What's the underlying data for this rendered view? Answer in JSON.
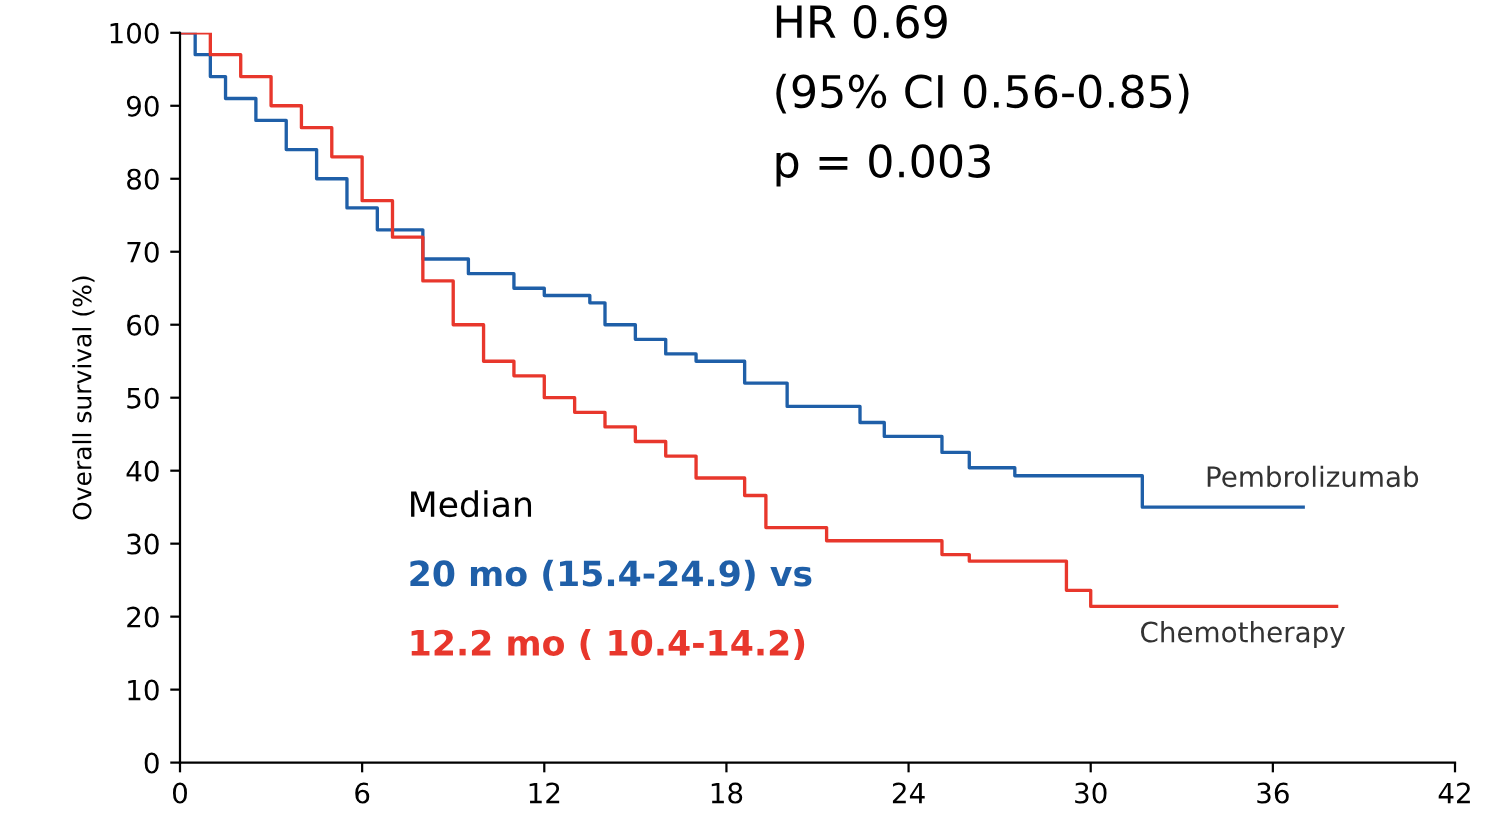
{
  "chart_data": {
    "type": "step",
    "ylabel": "Overall survival (%)",
    "xlim": [
      0,
      42
    ],
    "xticks": [
      0,
      6,
      12,
      18,
      24,
      30,
      36,
      42
    ],
    "ylim": [
      0,
      100
    ],
    "yticks": [
      0,
      10,
      20,
      30,
      40,
      50,
      60,
      70,
      80,
      90,
      100
    ],
    "grid": false,
    "legend": false,
    "marker": "none",
    "line_style": "solid",
    "series": [
      {
        "name": "Pembrolizumab",
        "color": "#1f5fa8",
        "x": [
          0,
          0.5,
          1,
          1.5,
          2.5,
          3.5,
          4.5,
          5.5,
          6.5,
          8,
          9.5,
          11,
          12,
          13.5,
          14,
          15,
          16,
          17,
          18.6,
          20,
          22.4,
          23.2,
          25.1,
          26,
          27.5,
          31.7,
          37.0
        ],
        "values": [
          100,
          97,
          94,
          91,
          88,
          84,
          80,
          76,
          73,
          69,
          67,
          65,
          64,
          63,
          60,
          58,
          56,
          55,
          52,
          48.8,
          46.6,
          44.7,
          42.5,
          40.4,
          39.3,
          35,
          35
        ]
      },
      {
        "name": "Chemotherapy",
        "color": "#e8372c",
        "x": [
          0,
          1,
          2,
          3,
          4,
          5,
          6,
          7,
          8,
          9,
          10,
          11,
          12,
          13,
          14,
          15,
          16,
          17,
          18.6,
          19.3,
          21.3,
          25.1,
          26,
          29.2,
          30,
          38.1
        ],
        "values": [
          100,
          97,
          94,
          90,
          87,
          83,
          77,
          72,
          66,
          60,
          55,
          53,
          50,
          48,
          46,
          44,
          42,
          39,
          36.6,
          32.2,
          30.4,
          28.5,
          27.6,
          23.6,
          21.4,
          21.4
        ]
      }
    ],
    "annotations": [
      "HR 0.69",
      "(95% CI 0.56-0.85)",
      "p = 0.003",
      "Median",
      "20 mo (15.4-24.9) vs",
      "12.2 mo ( 10.4-14.2)"
    ]
  }
}
